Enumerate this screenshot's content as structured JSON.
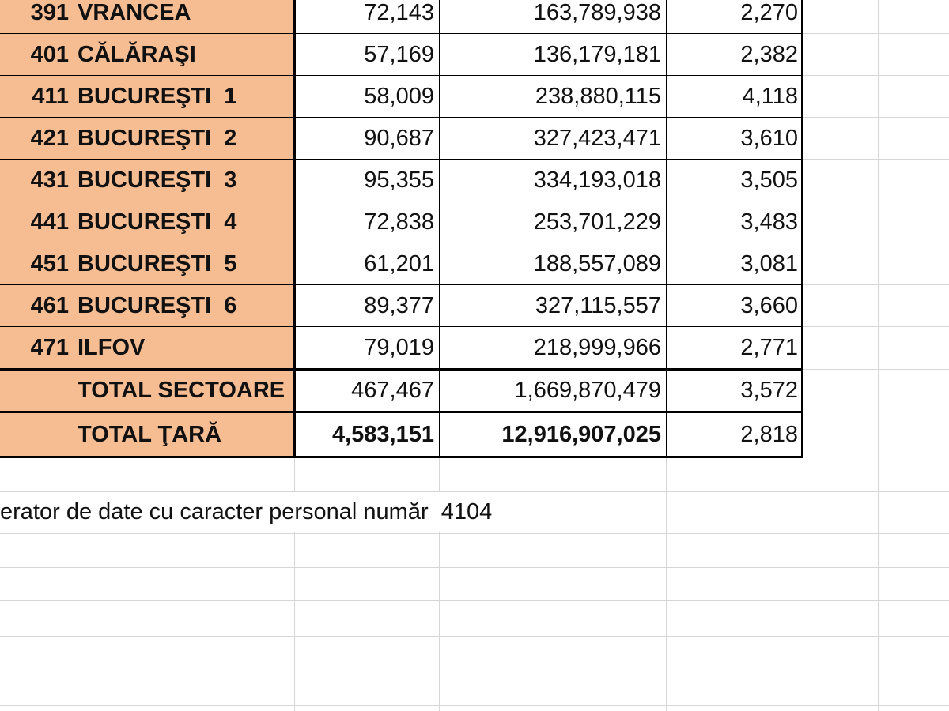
{
  "table": {
    "rows": [
      {
        "code": "391",
        "name": "VRANCEA",
        "values": [
          "72,143",
          "163,789,938",
          "2,270"
        ]
      },
      {
        "code": "401",
        "name": "CĂLĂRAŞI",
        "values": [
          "57,169",
          "136,179,181",
          "2,382"
        ]
      },
      {
        "code": "411",
        "name": "BUCUREŞTI  1",
        "values": [
          "58,009",
          "238,880,115",
          "4,118"
        ]
      },
      {
        "code": "421",
        "name": "BUCUREŞTI  2",
        "values": [
          "90,687",
          "327,423,471",
          "3,610"
        ]
      },
      {
        "code": "431",
        "name": "BUCUREŞTI  3",
        "values": [
          "95,355",
          "334,193,018",
          "3,505"
        ]
      },
      {
        "code": "441",
        "name": "BUCUREŞTI  4",
        "values": [
          "72,838",
          "253,701,229",
          "3,483"
        ]
      },
      {
        "code": "451",
        "name": "BUCUREŞTI  5",
        "values": [
          "61,201",
          "188,557,089",
          "3,081"
        ]
      },
      {
        "code": "461",
        "name": "BUCUREŞTI  6",
        "values": [
          "89,377",
          "327,115,557",
          "3,660"
        ]
      },
      {
        "code": "471",
        "name": "ILFOV",
        "values": [
          "79,019",
          "218,999,966",
          "2,771"
        ]
      },
      {
        "name": "TOTAL SECTOARE",
        "values": [
          "467,467",
          "1,669,870,479",
          "3,572"
        ]
      },
      {
        "name": "TOTAL ŢARĂ",
        "values": [
          "4,583,151",
          "12,916,907,025",
          "2,818"
        ]
      }
    ]
  },
  "footer": {
    "note": "erator de date cu caracter personal număr  4104"
  }
}
